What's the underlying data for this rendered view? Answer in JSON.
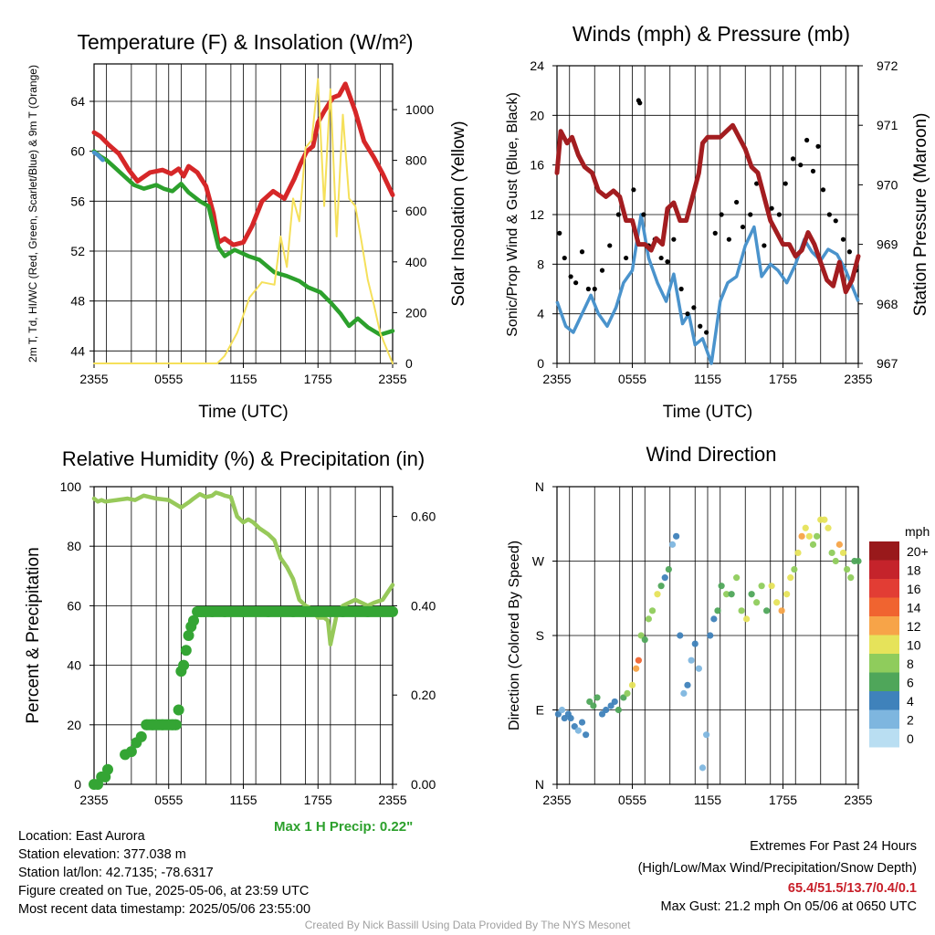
{
  "chart_data": [
    {
      "type": "line",
      "title": "Temperature (F) & Insolation (W/m²)",
      "xlabel": "Time (UTC)",
      "ylabel": "2m T, Td, HI/WC (Red, Green, Scarlet/Blue) & 9m T (Orange)",
      "ylabel2": "Solar Insolation (Yellow)",
      "xticks": [
        "2355",
        "0555",
        "1155",
        "1755",
        "2355"
      ],
      "yticks": [
        44,
        48,
        52,
        56,
        60,
        64
      ],
      "y2ticks": [
        0,
        200,
        400,
        600,
        800,
        1000
      ],
      "xlim": [
        0,
        24
      ],
      "ylim": [
        43,
        67
      ],
      "y2lim": [
        0,
        1180
      ],
      "series": [
        {
          "color": "#d62728",
          "x": [
            0,
            0.5,
            1.2,
            2,
            2.8,
            3.5,
            4.5,
            5.5,
            6.2,
            6.8,
            7.2,
            7.6,
            8.3,
            9,
            9.6,
            10,
            10.5,
            11.2,
            12,
            12.7,
            13.5,
            14.4,
            15.3,
            16.1,
            16.6,
            17.1,
            17.6,
            18,
            18.5,
            19.2,
            19.7,
            20.2,
            21,
            21.7,
            22.5,
            23.2,
            24
          ],
          "y": [
            61.5,
            61.2,
            60.5,
            59.8,
            58.5,
            57.6,
            58.3,
            58.5,
            58.2,
            58.6,
            58.0,
            58.8,
            58.3,
            57.2,
            55.0,
            52.7,
            53.0,
            52.5,
            52.7,
            54.0,
            56.0,
            56.8,
            56.2,
            57.8,
            59.0,
            60.0,
            60.4,
            62.3,
            63.2,
            64.3,
            64.5,
            65.4,
            63.2,
            60.8,
            59.5,
            58.2,
            56.5
          ]
        },
        {
          "color": "#2ca02c",
          "x": [
            0,
            0.5,
            1.0,
            3.2,
            4,
            5,
            5.6,
            6.3,
            7,
            7.6,
            8.5,
            9.2,
            10,
            10.5,
            11.3,
            12.4,
            13.3,
            14.5,
            15.5,
            16.5,
            17.2,
            18.2,
            19,
            19.8,
            20.5,
            21.2,
            22,
            23,
            24
          ],
          "y": [
            60.0,
            59.6,
            59.3,
            57.3,
            57.0,
            57.3,
            57.0,
            56.8,
            57.4,
            56.7,
            56.0,
            55.6,
            52.3,
            51.6,
            52.1,
            51.6,
            51.3,
            50.3,
            50.0,
            49.6,
            49.1,
            48.7,
            47.9,
            47.0,
            46.0,
            46.6,
            45.9,
            45.3,
            45.6
          ]
        },
        {
          "color": "#f5e05a",
          "x": [
            0,
            9.9,
            10.5,
            11.5,
            12.5,
            13.5,
            14.5,
            15,
            15.5,
            16,
            16.5,
            17,
            17.5,
            18,
            18.5,
            19,
            19.5,
            20,
            20.5,
            21,
            21.5,
            22,
            22.5,
            23,
            24
          ],
          "y": [
            0,
            0,
            30,
            120,
            260,
            320,
            310,
            500,
            380,
            650,
            560,
            850,
            880,
            1120,
            620,
            1080,
            500,
            980,
            650,
            620,
            480,
            330,
            230,
            120,
            0
          ]
        },
        {
          "color": "#4a93cc",
          "x": [
            0,
            0.3,
            0.7
          ],
          "y": [
            59.9,
            59.7,
            59.3
          ]
        }
      ]
    },
    {
      "type": "scatter",
      "title": "Winds (mph) & Pressure (mb)",
      "xlabel": "Time (UTC)",
      "ylabel": "Sonic/Prop Wind & Gust (Blue, Black)",
      "ylabel2": "Station Pressure (Maroon)",
      "xticks": [
        "2355",
        "0555",
        "1155",
        "1755",
        "2355"
      ],
      "yticks": [
        0,
        4,
        8,
        12,
        16,
        20,
        24
      ],
      "y2ticks": [
        967,
        968,
        969,
        970,
        971,
        972
      ],
      "xlim": [
        0,
        24
      ],
      "ylim": [
        0,
        24
      ],
      "y2lim": [
        967,
        972
      ],
      "series": [
        {
          "name": "",
          "color": "#4a93cc",
          "x": [
            0,
            0.7,
            1.3,
            2,
            2.7,
            3.3,
            4,
            4.7,
            5.3,
            6,
            6.7,
            7.3,
            8,
            8.7,
            9.3,
            10,
            10.5,
            11,
            11.6,
            12.3,
            13,
            13.6,
            14.3,
            15,
            15.7,
            16.3,
            17,
            17.6,
            18.3,
            19,
            19.7,
            20.3,
            21,
            21.6,
            22.3,
            23,
            23.6,
            24
          ],
          "y": [
            5,
            3,
            2.5,
            4,
            5.5,
            4,
            3,
            4.5,
            6.5,
            7.5,
            12,
            8.5,
            6.5,
            5,
            7.2,
            3.2,
            4,
            1.5,
            2,
            0,
            5,
            6.5,
            7,
            9.5,
            11,
            7,
            8,
            7.5,
            6.5,
            8,
            10,
            9,
            8.3,
            9.2,
            8.8,
            7.5,
            6,
            5
          ]
        },
        {
          "name": "",
          "color": "#000000",
          "x": [
            0.2,
            0.6,
            1.1,
            1.5,
            2,
            2.5,
            3,
            3.6,
            4.2,
            4.9,
            5.5,
            6.1,
            6.5,
            6.6,
            6.9,
            7.3,
            7.8,
            8.3,
            8.8,
            9.3,
            9.9,
            10.4,
            10.9,
            11.4,
            11.9,
            12.6,
            13.1,
            13.7,
            14.3,
            14.8,
            15.4,
            15.9,
            16.5,
            17.1,
            17.7,
            18.2,
            18.8,
            19.4,
            19.9,
            20.4,
            20.8,
            21.2,
            21.7,
            22.2,
            22.8,
            23.3,
            23.8
          ],
          "y": [
            10.5,
            8.5,
            7,
            6.5,
            9,
            6,
            6,
            7.5,
            9.5,
            12,
            8.5,
            14,
            21.2,
            21,
            12,
            9.5,
            10,
            8.5,
            8.2,
            10,
            6,
            4,
            4.5,
            3,
            2.5,
            10.5,
            12,
            10,
            13,
            11,
            12,
            14.5,
            9.5,
            12.5,
            12,
            14.5,
            16.5,
            16,
            18,
            15.5,
            17.5,
            14,
            12,
            11.5,
            10,
            9,
            7.5
          ]
        },
        {
          "name": "",
          "color": "#a31d20",
          "x": [
            0,
            0.3,
            0.8,
            1.2,
            1.7,
            2.2,
            2.8,
            3.3,
            3.9,
            4.5,
            5,
            5.5,
            6,
            6.5,
            7,
            7.5,
            7.9,
            8.4,
            8.8,
            9.3,
            9.8,
            10.3,
            10.8,
            11.3,
            11.6,
            12,
            12.5,
            13,
            13.5,
            14,
            14.5,
            15,
            15.5,
            16,
            16.5,
            17,
            17.5,
            18,
            18.5,
            19,
            19.5,
            20,
            20.5,
            21,
            21.5,
            22,
            22.5,
            23,
            23.5,
            24
          ],
          "y": [
            970.2,
            970.9,
            970.7,
            970.8,
            970.5,
            970.3,
            970.2,
            969.9,
            969.8,
            969.9,
            969.8,
            969.4,
            969.4,
            969,
            969,
            968.9,
            969.1,
            969,
            969.6,
            969.7,
            969.4,
            969.4,
            969.8,
            970.2,
            970.7,
            970.8,
            970.8,
            970.8,
            970.9,
            971,
            970.8,
            970.6,
            970.3,
            970.2,
            969.8,
            969.4,
            969.2,
            969.0,
            969.0,
            968.8,
            968.9,
            969.2,
            969.0,
            968.7,
            968.4,
            968.3,
            968.7,
            968.2,
            968.4,
            968.8
          ]
        }
      ]
    },
    {
      "type": "line",
      "title": "Relative Humidity (%) & Precipitation (in)",
      "xlabel": "",
      "ylabel": "Percent & Precipitation",
      "xticks": [
        "2355",
        "0555",
        "1155",
        "1755",
        "2355"
      ],
      "yticks": [
        0,
        20,
        40,
        60,
        80,
        100
      ],
      "y2ticks": [
        "0.00",
        "0.20",
        "0.40",
        "0.60"
      ],
      "xlim": [
        0,
        24
      ],
      "ylim": [
        0,
        100
      ],
      "y2lim": [
        0,
        0.6667
      ],
      "annotation": "Max 1 H Precip: 0.22\"",
      "series": [
        {
          "color": "#97c95a",
          "x": [
            0,
            0.3,
            0.6,
            0.9,
            2.7,
            3.3,
            4,
            5,
            6,
            7,
            7.7,
            8,
            8.5,
            9,
            9.5,
            9.8,
            10.2,
            10.5,
            11,
            11.5,
            12,
            12.4,
            12.8,
            13.3,
            14,
            14.5,
            15,
            15.5,
            16,
            16.5,
            17,
            17.5,
            18,
            18.5,
            18.8,
            19,
            19.5,
            20,
            21,
            22,
            22.5,
            23.2,
            24
          ],
          "y": [
            96,
            95,
            95.5,
            95,
            96,
            95.5,
            97,
            96,
            95.5,
            93,
            95,
            96,
            97.5,
            96.5,
            97,
            98,
            97.5,
            97,
            96.5,
            90,
            88,
            89,
            88,
            86,
            84,
            82,
            76,
            73,
            69,
            62,
            60,
            59,
            56,
            56,
            55,
            47,
            57,
            60,
            62,
            60,
            61,
            62,
            67
          ]
        },
        {
          "color": "#34a534",
          "x": [
            0,
            0.3,
            0.6,
            0.9,
            1.1,
            2.5,
            3,
            3.4,
            3.8,
            4.2,
            4.7,
            5.5,
            6.3,
            6.6,
            6.8,
            7.0,
            7.2,
            7.4,
            7.6,
            7.8,
            8.0,
            8.3,
            8.6,
            8.9,
            9.5,
            10.5,
            12,
            14,
            16,
            18,
            20,
            22,
            24
          ],
          "y": [
            0,
            0,
            2.5,
            2.5,
            5,
            10,
            11,
            14,
            16,
            20,
            20,
            20,
            20,
            20,
            25,
            38,
            40,
            45,
            50,
            53,
            55,
            58,
            58,
            58,
            58,
            58,
            58,
            58,
            58,
            58,
            58,
            58,
            58
          ]
        }
      ]
    },
    {
      "type": "scatter",
      "title": "Wind Direction",
      "ylabel": "Direction (Colored By Speed)",
      "xticks": [
        "2355",
        "0555",
        "1155",
        "1755",
        "2355"
      ],
      "yticks": [
        "N",
        "E",
        "S",
        "W",
        "N"
      ],
      "xlim": [
        0,
        24
      ],
      "ylim": [
        0,
        360
      ],
      "legend": {
        "title": "mph",
        "labels": [
          "20+",
          "18",
          "16",
          "14",
          "12",
          "10",
          "8",
          "6",
          "4",
          "2",
          "0"
        ],
        "colors": [
          "#99191b",
          "#c5232b",
          "#e23d34",
          "#f06430",
          "#f7a448",
          "#e6e35a",
          "#8fcc5c",
          "#4fa65a",
          "#3f82bb",
          "#7eb6df",
          "#b9def2"
        ],
        "placement": "right"
      },
      "series": [
        {
          "name": "",
          "x": [
            0.1,
            0.4,
            0.6,
            0.9,
            1.1,
            1.4,
            1.7,
            2,
            2.3,
            2.6,
            2.9,
            3.2,
            3.6,
            3.9,
            4.3,
            4.6,
            4.9,
            5.3,
            5.6,
            6,
            6.3,
            6.5,
            6.7,
            7,
            7.3,
            7.6,
            8.0,
            8.3,
            8.6,
            8.9,
            9.2,
            9.5,
            9.8,
            10.1,
            10.4,
            10.7,
            11,
            11.3,
            11.6,
            11.9,
            12.2,
            12.5,
            12.8,
            13.1,
            13.5,
            13.9,
            14.3,
            14.7,
            15.1,
            15.5,
            15.9,
            16.3,
            16.7,
            17.1,
            17.5,
            17.9,
            18.3,
            18.6,
            18.9,
            19.2,
            19.5,
            19.8,
            20.1,
            20.4,
            20.7,
            21,
            21.3,
            21.6,
            21.9,
            22.2,
            22.5,
            22.8,
            23.1,
            23.4,
            23.7,
            24
          ],
          "y": [
            85,
            90,
            80,
            85,
            80,
            70,
            65,
            75,
            60,
            100,
            95,
            105,
            85,
            90,
            95,
            100,
            90,
            105,
            110,
            120,
            140,
            150,
            180,
            175,
            200,
            210,
            230,
            240,
            250,
            260,
            290,
            300,
            180,
            110,
            120,
            150,
            170,
            140,
            20,
            60,
            180,
            200,
            210,
            240,
            230,
            230,
            250,
            210,
            200,
            230,
            220,
            240,
            210,
            240,
            220,
            210,
            230,
            250,
            260,
            280,
            300,
            310,
            300,
            290,
            300,
            320,
            320,
            310,
            280,
            270,
            290,
            280,
            260,
            250,
            270,
            270
          ],
          "speed": [
            3,
            2,
            4,
            3,
            4,
            3,
            2,
            4,
            3,
            6,
            5,
            6,
            3,
            4,
            3,
            4,
            5,
            6,
            7,
            10,
            12,
            14,
            8,
            6,
            7,
            8,
            10,
            5,
            4,
            6,
            2,
            3,
            3,
            2,
            3,
            2,
            4,
            1,
            2,
            2,
            3,
            4,
            5,
            6,
            7,
            6,
            8,
            7,
            9,
            6,
            8,
            7,
            6,
            10,
            9,
            11,
            10,
            9,
            8,
            9,
            12,
            10,
            9,
            8,
            7,
            9,
            10,
            9,
            8,
            7,
            11,
            9,
            8,
            7,
            6,
            5
          ]
        }
      ]
    }
  ],
  "info": {
    "location": "Location: East Aurora",
    "elevation": "Station elevation: 377.038 m",
    "latlon": "Station lat/lon: 42.7135; -78.6317",
    "created": "Figure created on Tue, 2025-05-06, at 23:59 UTC",
    "recent": "Most recent data timestamp: 2025/05/06 23:55:00",
    "ext_title": "Extremes For Past 24 Hours",
    "ext_sub": "(High/Low/Max Wind/Precipitation/Snow Depth)",
    "ext_vals": "65.4/51.5/13.7/0.4/0.1",
    "max_gust": "Max Gust: 21.2 mph On 05/06 at 0650 UTC",
    "credit": "Created By Nick Bassill Using Data Provided By The NYS Mesonet",
    "max_precip": "Max 1 H Precip: 0.22\""
  }
}
